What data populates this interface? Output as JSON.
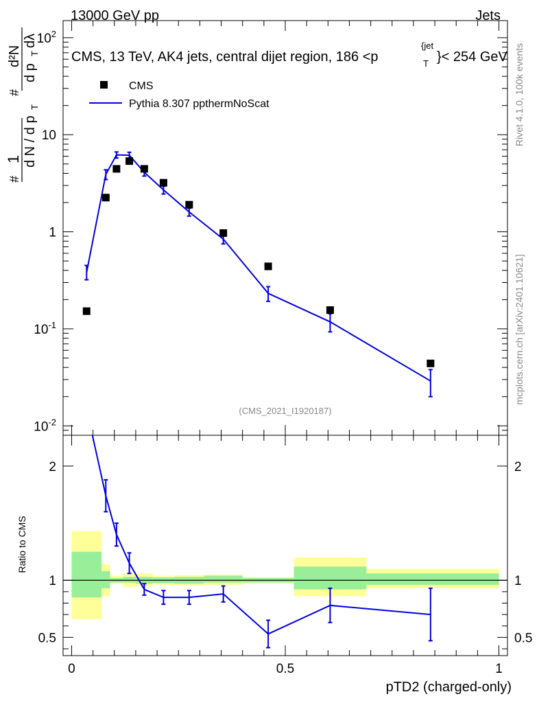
{
  "header": {
    "left": "13000 GeV pp",
    "right": "Jets",
    "title_main": "CMS, 13 TeV, AK4 jets, central dijet region, 186 <p",
    "title_sub": "T",
    "title_sup": "{jet",
    "title_tail": "}< 254 GeV",
    "watermark": "(CMS_2021_I1920187)"
  },
  "side": {
    "rivet": "Rivet 4.1.0,  100k events",
    "mcplots": "mcplots.cern.ch [arXiv:2401.10621]"
  },
  "legend": {
    "data_label": "CMS",
    "mc_label": "Pythia 8.307 ppthermNoScat"
  },
  "colors": {
    "mc": "#0000dd",
    "data": "#000000",
    "band_inner": "#99ee99",
    "band_outer": "#ffff99"
  },
  "chart_data": [
    {
      "type": "line",
      "panel": "main",
      "yscale": "log",
      "xlim": [
        -0.02,
        1.02
      ],
      "ylim": [
        0.008,
        150
      ],
      "ylabel": "# 1/(dN / d p_T) # d²N/(d p_T dλ)",
      "ytick_labels": [
        "10^-2",
        "10^-1",
        "1",
        "10",
        "10^2"
      ],
      "series": [
        {
          "name": "CMS",
          "style": "markers",
          "x": [
            0.035,
            0.08,
            0.105,
            0.135,
            0.17,
            0.215,
            0.275,
            0.355,
            0.46,
            0.605,
            0.84
          ],
          "y": [
            0.152,
            2.25,
            4.45,
            5.35,
            4.45,
            3.2,
            1.9,
            0.97,
            0.44,
            0.156,
            0.044
          ]
        },
        {
          "name": "Pythia 8.307 ppthermNoScat",
          "style": "line",
          "x": [
            0.035,
            0.08,
            0.105,
            0.135,
            0.17,
            0.215,
            0.275,
            0.355,
            0.46,
            0.605,
            0.84
          ],
          "y": [
            0.38,
            3.9,
            6.2,
            6.15,
            4.1,
            2.7,
            1.6,
            0.84,
            0.232,
            0.118,
            0.029
          ],
          "yerr_low": [
            0.06,
            0.45,
            0.45,
            0.45,
            0.35,
            0.25,
            0.15,
            0.09,
            0.04,
            0.025,
            0.009
          ],
          "yerr_high": [
            0.07,
            0.45,
            0.45,
            0.45,
            0.35,
            0.25,
            0.15,
            0.09,
            0.04,
            0.025,
            0.009
          ]
        }
      ]
    },
    {
      "type": "line",
      "panel": "ratio",
      "xlim": [
        -0.02,
        1.02
      ],
      "ylim": [
        0.34,
        2.27
      ],
      "xlabel": "pTD2 (charged-only)",
      "ylabel": "Ratio to CMS",
      "xtick_labels": [
        "0",
        "0.5",
        "1"
      ],
      "ytick_labels": [
        "0.5",
        "1",
        "2"
      ],
      "reference": 1,
      "bands": {
        "edges": [
          0.0,
          0.07,
          0.09,
          0.12,
          0.15,
          0.19,
          0.24,
          0.31,
          0.4,
          0.52,
          0.69,
          1.0
        ],
        "inner_low": [
          0.85,
          0.93,
          0.98,
          0.98,
          0.97,
          0.975,
          0.97,
          0.98,
          0.98,
          0.92,
          0.96
        ],
        "inner_high": [
          1.25,
          1.08,
          1.02,
          1.03,
          1.03,
          1.025,
          1.03,
          1.04,
          1.02,
          1.12,
          1.06
        ],
        "outer_low": [
          0.66,
          0.86,
          0.97,
          0.94,
          0.95,
          0.96,
          0.955,
          0.96,
          0.975,
          0.86,
          0.93
        ],
        "outer_high": [
          1.43,
          1.14,
          1.04,
          1.06,
          1.06,
          1.04,
          1.045,
          1.05,
          1.03,
          1.2,
          1.1
        ]
      },
      "series": [
        {
          "name": "Pythia 8.307 ppthermNoScat / CMS",
          "x": [
            0.035,
            0.08,
            0.105,
            0.135,
            0.17,
            0.215,
            0.275,
            0.355,
            0.46,
            0.605,
            0.84
          ],
          "y": [
            2.5,
            1.74,
            1.4,
            1.15,
            0.92,
            0.85,
            0.85,
            0.88,
            0.53,
            0.78,
            0.7
          ],
          "yerr": [
            0.25,
            0.14,
            0.1,
            0.09,
            0.05,
            0.06,
            0.06,
            0.07,
            0.12,
            0.15,
            0.23
          ]
        }
      ]
    }
  ]
}
